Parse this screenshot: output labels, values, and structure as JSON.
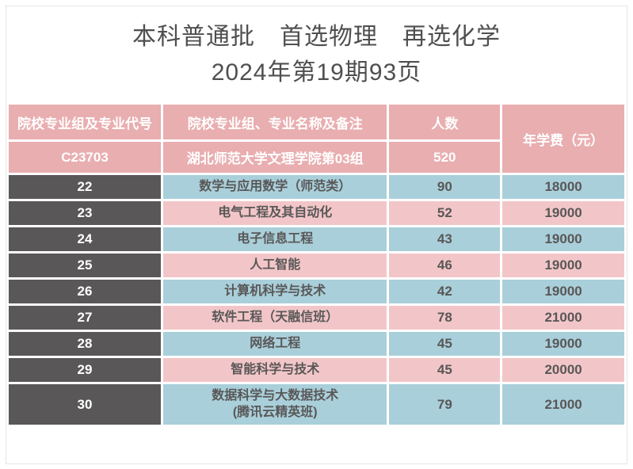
{
  "page": {
    "title_line1": "本科普通批　首选物理　再选化学",
    "title_line2": "2024年第19期93页"
  },
  "colors": {
    "header_pink": "#e9aeb0",
    "row_pink": "#f2c6c8",
    "row_blue": "#a9cfda",
    "code_cell_dark": "#595757",
    "data_text": "#595757",
    "title_text": "#4f4f4f"
  },
  "table": {
    "columns": {
      "group_code": "院校专业组及专业代号",
      "major_name": "院校专业组、专业名称及备注",
      "count": "人数",
      "fee": "年学费（元）"
    },
    "group_row": {
      "code": "C23703",
      "name": "湖北师范大学文理学院第03组",
      "count": "520"
    },
    "rows": [
      {
        "code": "22",
        "name": "数学与应用数学（师范类）",
        "count": "90",
        "fee": "18000",
        "tone": "blue"
      },
      {
        "code": "23",
        "name": "电气工程及其自动化",
        "count": "52",
        "fee": "19000",
        "tone": "pink"
      },
      {
        "code": "24",
        "name": "电子信息工程",
        "count": "43",
        "fee": "19000",
        "tone": "blue"
      },
      {
        "code": "25",
        "name": "人工智能",
        "count": "46",
        "fee": "19000",
        "tone": "pink"
      },
      {
        "code": "26",
        "name": "计算机科学与技术",
        "count": "42",
        "fee": "19000",
        "tone": "blue"
      },
      {
        "code": "27",
        "name": "软件工程（天融信班）",
        "count": "78",
        "fee": "21000",
        "tone": "pink"
      },
      {
        "code": "28",
        "name": "网络工程",
        "count": "45",
        "fee": "19000",
        "tone": "blue"
      },
      {
        "code": "29",
        "name": "智能科学与技术",
        "count": "45",
        "fee": "20000",
        "tone": "pink"
      },
      {
        "code": "30",
        "name": "数据科学与大数据技术\n(腾讯云精英班)",
        "count": "79",
        "fee": "21000",
        "tone": "blue"
      }
    ]
  }
}
